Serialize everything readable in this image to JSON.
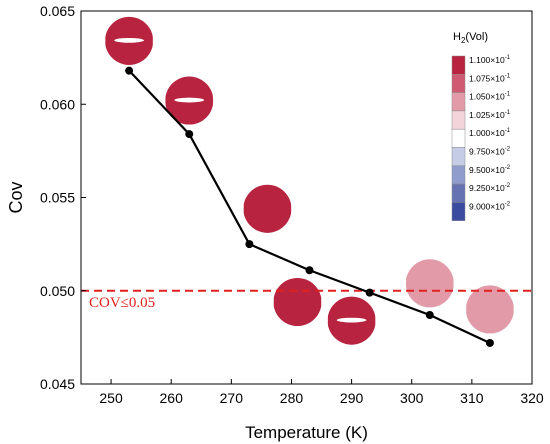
{
  "chart_data": {
    "type": "line",
    "xlabel": "Temperature (K)",
    "ylabel": "Cov",
    "xlim": [
      245,
      320
    ],
    "ylim": [
      0.045,
      0.065
    ],
    "xticks": [
      "250",
      "260",
      "270",
      "280",
      "290",
      "300",
      "310",
      "320"
    ],
    "xtick_values": [
      250,
      260,
      270,
      280,
      290,
      300,
      310,
      320
    ],
    "yticks": [
      "0.045",
      "0.050",
      "0.055",
      "0.060",
      "0.065"
    ],
    "ytick_values": [
      0.045,
      0.05,
      0.055,
      0.06,
      0.065
    ],
    "grid": false,
    "series": [
      {
        "x": [
          253,
          263,
          273,
          283,
          293,
          303,
          313
        ],
        "y": [
          0.0618,
          0.0584,
          0.0525,
          0.0511,
          0.0499,
          0.0487,
          0.0472
        ],
        "color": "#000000"
      }
    ],
    "threshold": {
      "y": 0.05,
      "label": "COV≤0.05",
      "color": "#e0221e"
    },
    "insets": [
      {
        "x": 253,
        "y": 0.0634,
        "type": "A"
      },
      {
        "x": 263,
        "y": 0.0602,
        "type": "B"
      },
      {
        "x": 276,
        "y": 0.0544,
        "type": "C"
      },
      {
        "x": 281,
        "y": 0.0494,
        "type": "D"
      },
      {
        "x": 290,
        "y": 0.0484,
        "type": "E"
      },
      {
        "x": 303,
        "y": 0.0504,
        "type": "F"
      },
      {
        "x": 313,
        "y": 0.049,
        "type": "G"
      }
    ],
    "colorbar": {
      "title_main": "H",
      "title_sub": "2",
      "title_rest": "(Vol)",
      "labels": [
        {
          "mant": "1.100×10",
          "exp": "-1"
        },
        {
          "mant": "1.075×10",
          "exp": "-1"
        },
        {
          "mant": "1.050×10",
          "exp": "-1"
        },
        {
          "mant": "1.025×10",
          "exp": "-1"
        },
        {
          "mant": "1.000×10",
          "exp": "-1"
        },
        {
          "mant": "9.750×10",
          "exp": "-2"
        },
        {
          "mant": "9.500×10",
          "exp": "-2"
        },
        {
          "mant": "9.250×10",
          "exp": "-2"
        },
        {
          "mant": "9.000×10",
          "exp": "-2"
        }
      ],
      "colors": [
        "#b8233f",
        "#cf5a72",
        "#e29aa8",
        "#f3d4da",
        "#ffffff",
        "#c5cce6",
        "#8f9ccc",
        "#6573b3",
        "#3a4ba0"
      ]
    }
  }
}
